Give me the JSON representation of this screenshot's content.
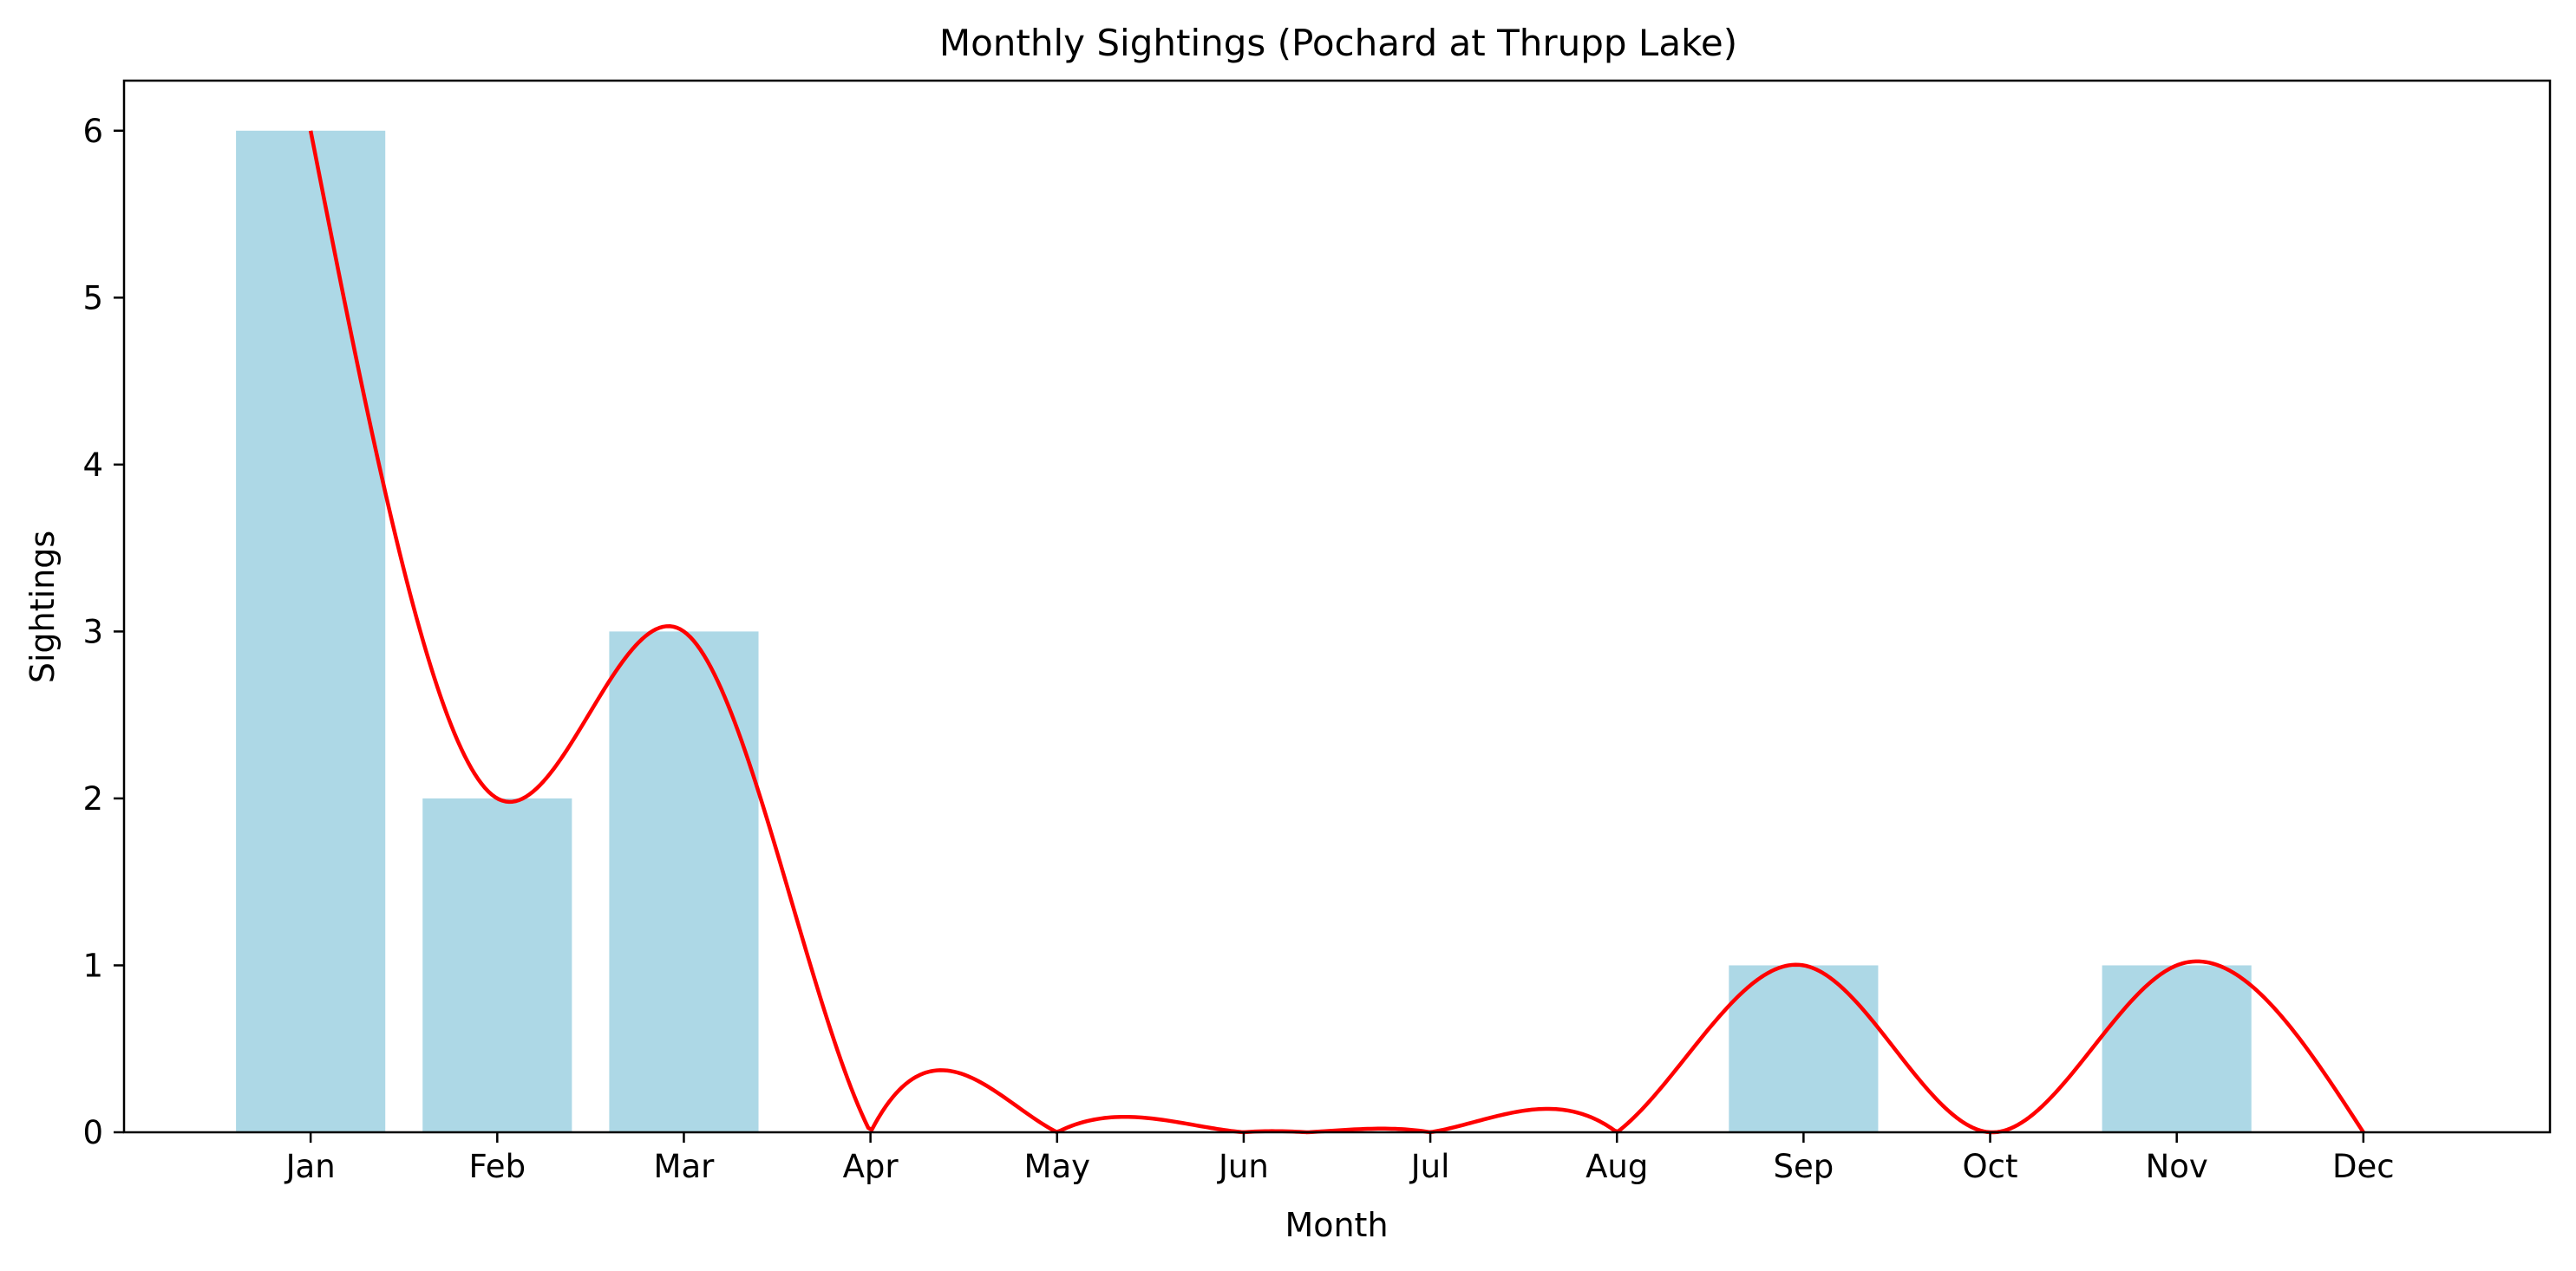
{
  "chart_data": {
    "type": "bar",
    "title": "Monthly Sightings (Pochard at Thrupp Lake)",
    "xlabel": "Month",
    "ylabel": "Sightings",
    "categories": [
      "Jan",
      "Feb",
      "Mar",
      "Apr",
      "May",
      "Jun",
      "Jul",
      "Aug",
      "Sep",
      "Oct",
      "Nov",
      "Dec"
    ],
    "values": [
      6,
      2,
      3,
      0,
      0,
      0,
      0,
      0,
      1,
      0,
      1,
      0
    ],
    "ylim": [
      0,
      6.3
    ],
    "yticks": [
      0,
      1,
      2,
      3,
      4,
      5,
      6
    ],
    "grid": false,
    "bar_color": "#add8e6",
    "line_color": "#ff0000",
    "overlay": "smoothed curve through monthly values"
  }
}
